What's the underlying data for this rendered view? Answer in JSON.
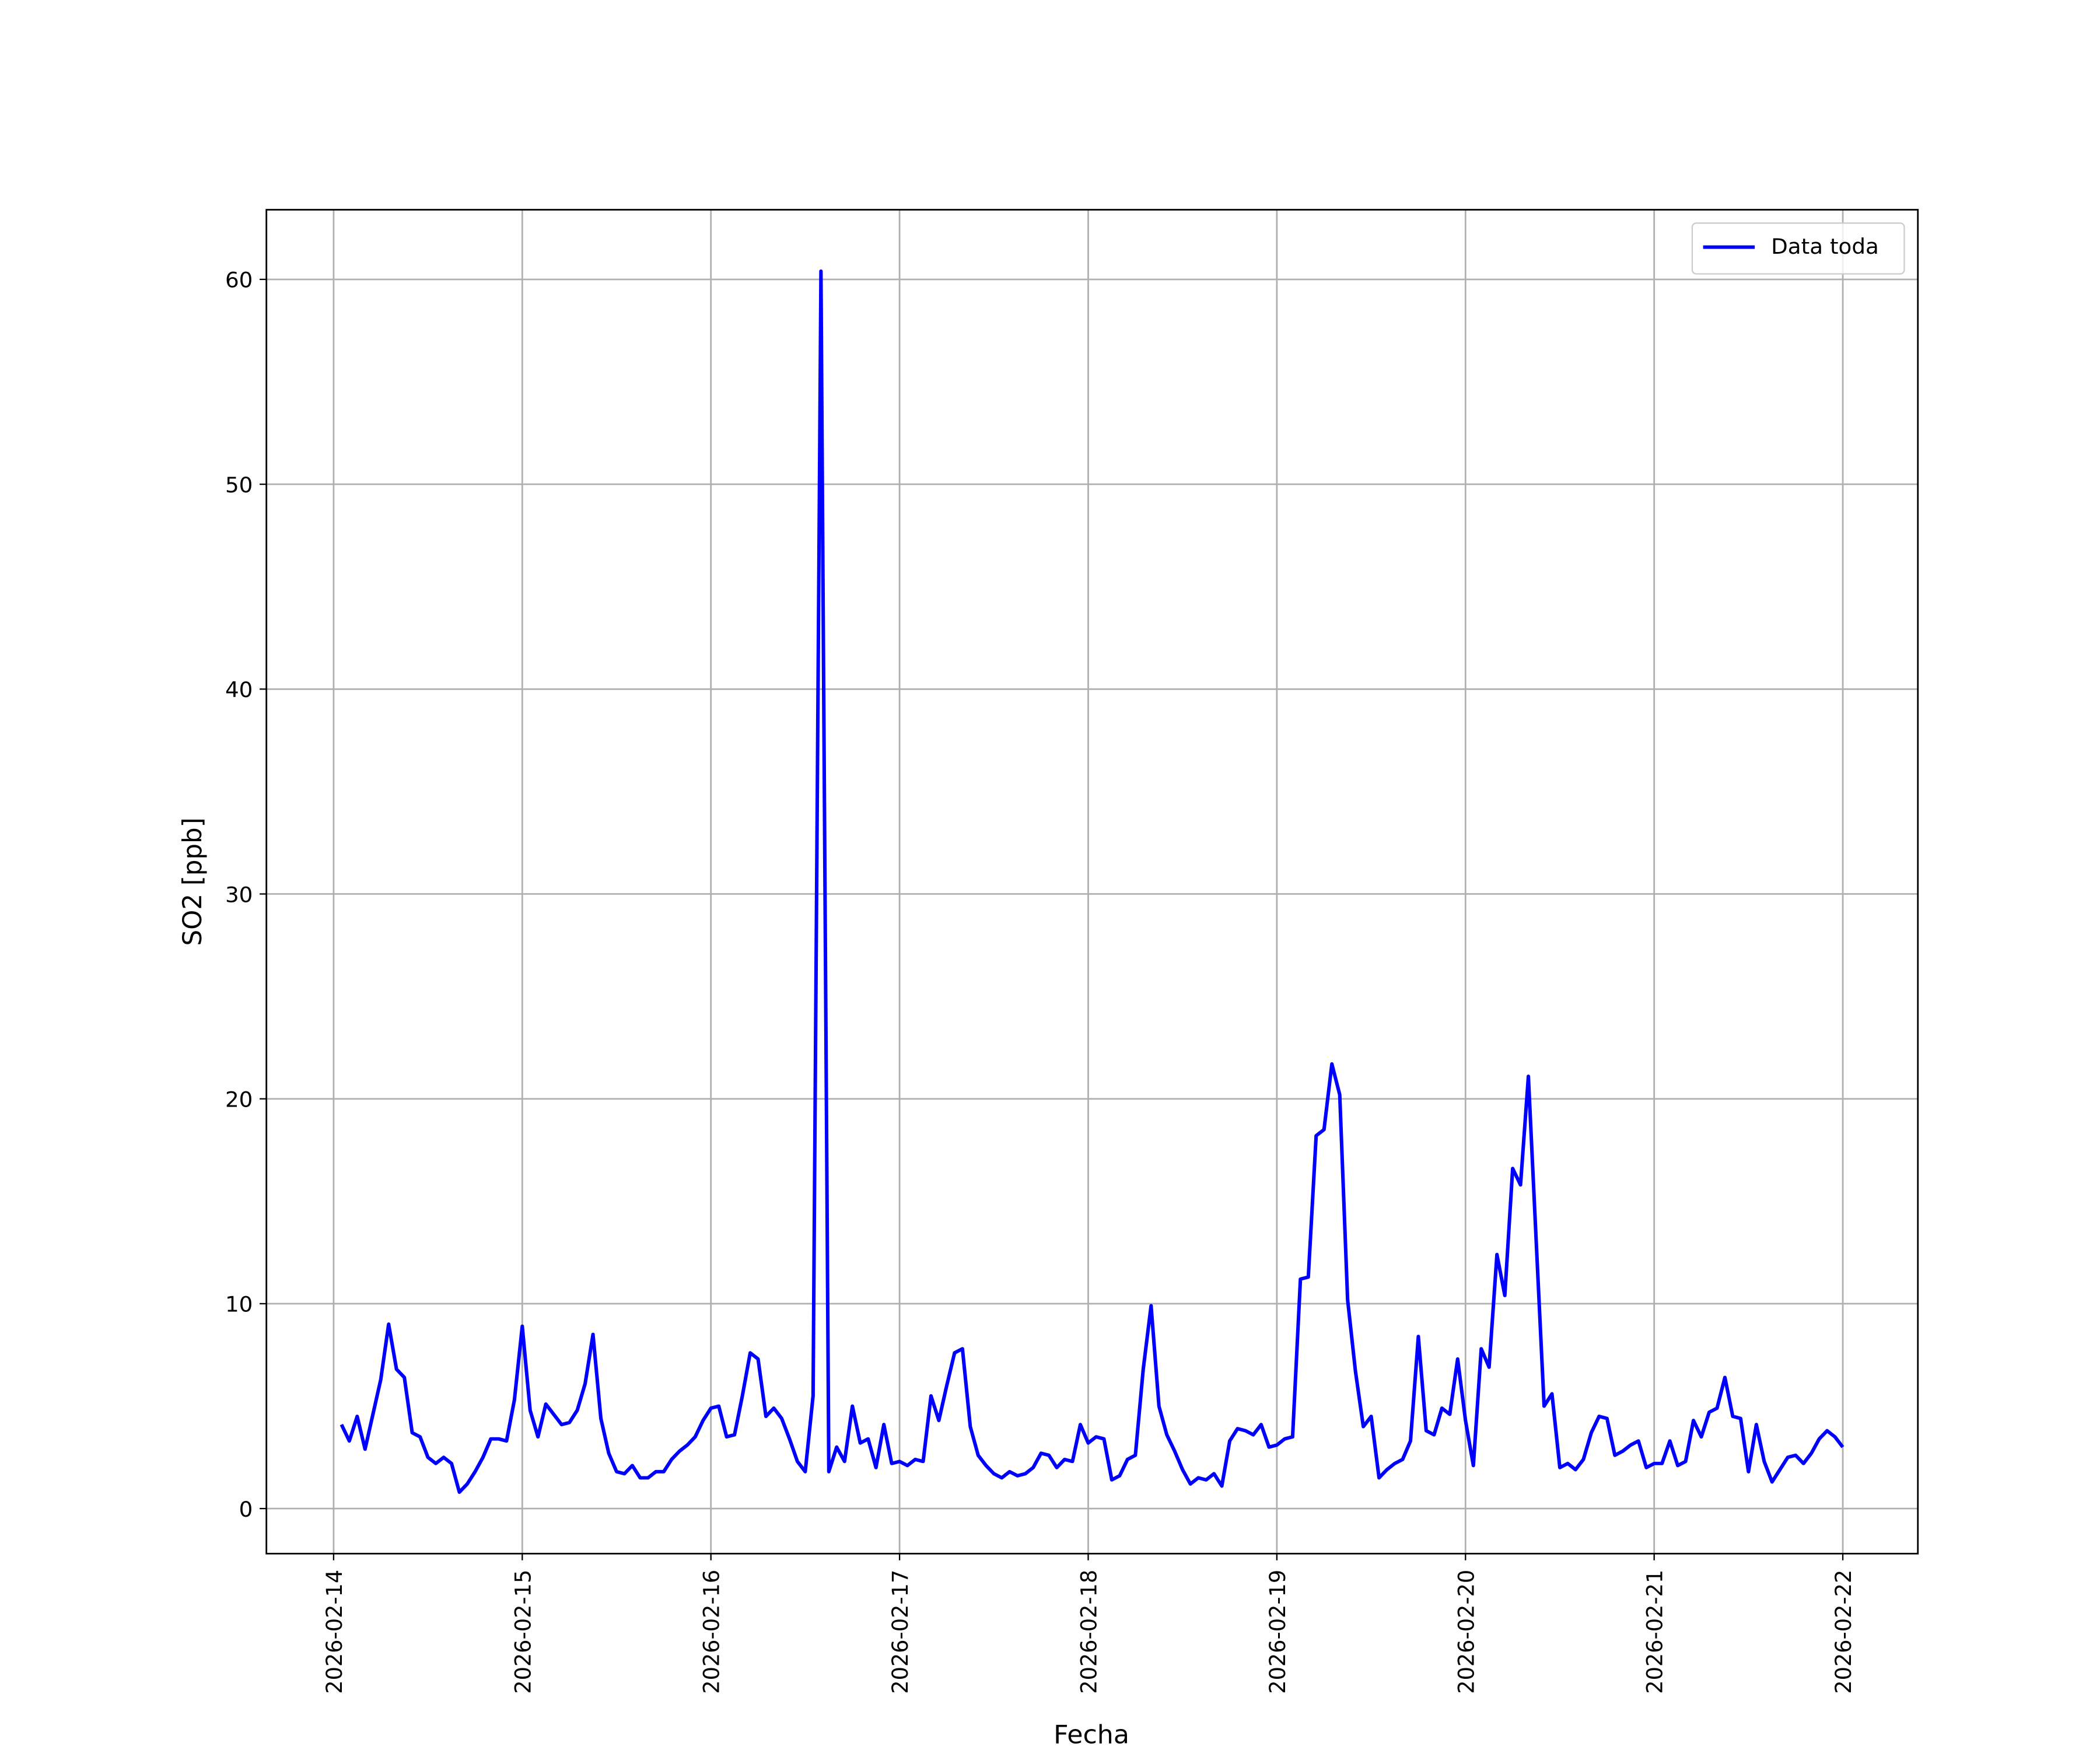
{
  "chart_data": {
    "type": "line",
    "xlabel": "Fecha",
    "ylabel": "SO2 [ppb]",
    "x": [
      "2026-02-14 01:00",
      "2026-02-14 02:00",
      "2026-02-14 03:00",
      "2026-02-14 04:00",
      "2026-02-14 05:00",
      "2026-02-14 06:00",
      "2026-02-14 07:00",
      "2026-02-14 08:00",
      "2026-02-14 09:00",
      "2026-02-14 10:00",
      "2026-02-14 11:00",
      "2026-02-14 12:00",
      "2026-02-14 13:00",
      "2026-02-14 14:00",
      "2026-02-14 15:00",
      "2026-02-14 16:00",
      "2026-02-14 17:00",
      "2026-02-14 18:00",
      "2026-02-14 19:00",
      "2026-02-14 20:00",
      "2026-02-14 21:00",
      "2026-02-14 22:00",
      "2026-02-14 23:00",
      "2026-02-15 00:00",
      "2026-02-15 01:00",
      "2026-02-15 02:00",
      "2026-02-15 03:00",
      "2026-02-15 04:00",
      "2026-02-15 05:00",
      "2026-02-15 06:00",
      "2026-02-15 07:00",
      "2026-02-15 08:00",
      "2026-02-15 09:00",
      "2026-02-15 10:00",
      "2026-02-15 11:00",
      "2026-02-15 12:00",
      "2026-02-15 13:00",
      "2026-02-15 14:00",
      "2026-02-15 15:00",
      "2026-02-15 16:00",
      "2026-02-15 17:00",
      "2026-02-15 18:00",
      "2026-02-15 19:00",
      "2026-02-15 20:00",
      "2026-02-15 21:00",
      "2026-02-15 22:00",
      "2026-02-15 23:00",
      "2026-02-16 00:00",
      "2026-02-16 01:00",
      "2026-02-16 02:00",
      "2026-02-16 03:00",
      "2026-02-16 04:00",
      "2026-02-16 05:00",
      "2026-02-16 06:00",
      "2026-02-16 07:00",
      "2026-02-16 08:00",
      "2026-02-16 09:00",
      "2026-02-16 10:00",
      "2026-02-16 11:00",
      "2026-02-16 12:00",
      "2026-02-16 13:00",
      "2026-02-16 14:00",
      "2026-02-16 15:00",
      "2026-02-16 16:00",
      "2026-02-16 17:00",
      "2026-02-16 18:00",
      "2026-02-16 19:00",
      "2026-02-16 20:00",
      "2026-02-16 21:00",
      "2026-02-16 22:00",
      "2026-02-16 23:00",
      "2026-02-17 00:00",
      "2026-02-17 01:00",
      "2026-02-17 02:00",
      "2026-02-17 03:00",
      "2026-02-17 04:00",
      "2026-02-17 05:00",
      "2026-02-17 06:00",
      "2026-02-17 07:00",
      "2026-02-17 08:00",
      "2026-02-17 09:00",
      "2026-02-17 10:00",
      "2026-02-17 11:00",
      "2026-02-17 12:00",
      "2026-02-17 13:00",
      "2026-02-17 14:00",
      "2026-02-17 15:00",
      "2026-02-17 16:00",
      "2026-02-17 17:00",
      "2026-02-17 18:00",
      "2026-02-17 19:00",
      "2026-02-17 20:00",
      "2026-02-17 21:00",
      "2026-02-17 22:00",
      "2026-02-17 23:00",
      "2026-02-18 00:00",
      "2026-02-18 01:00",
      "2026-02-18 02:00",
      "2026-02-18 03:00",
      "2026-02-18 04:00",
      "2026-02-18 05:00",
      "2026-02-18 06:00",
      "2026-02-18 07:00",
      "2026-02-18 08:00",
      "2026-02-18 09:00",
      "2026-02-18 10:00",
      "2026-02-18 11:00",
      "2026-02-18 12:00",
      "2026-02-18 13:00",
      "2026-02-18 14:00",
      "2026-02-18 15:00",
      "2026-02-18 16:00",
      "2026-02-18 17:00",
      "2026-02-18 18:00",
      "2026-02-18 19:00",
      "2026-02-18 20:00",
      "2026-02-18 21:00",
      "2026-02-18 22:00",
      "2026-02-18 23:00",
      "2026-02-19 00:00",
      "2026-02-19 01:00",
      "2026-02-19 02:00",
      "2026-02-19 03:00",
      "2026-02-19 04:00",
      "2026-02-19 05:00",
      "2026-02-19 06:00",
      "2026-02-19 07:00",
      "2026-02-19 08:00",
      "2026-02-19 09:00",
      "2026-02-19 10:00",
      "2026-02-19 11:00",
      "2026-02-19 12:00",
      "2026-02-19 13:00",
      "2026-02-19 14:00",
      "2026-02-19 15:00",
      "2026-02-19 16:00",
      "2026-02-19 17:00",
      "2026-02-19 18:00",
      "2026-02-19 19:00",
      "2026-02-19 20:00",
      "2026-02-19 21:00",
      "2026-02-19 22:00",
      "2026-02-19 23:00",
      "2026-02-20 00:00",
      "2026-02-20 01:00",
      "2026-02-20 02:00",
      "2026-02-20 03:00",
      "2026-02-20 04:00",
      "2026-02-20 05:00",
      "2026-02-20 06:00",
      "2026-02-20 07:00",
      "2026-02-20 08:00",
      "2026-02-20 09:00",
      "2026-02-20 10:00",
      "2026-02-20 11:00",
      "2026-02-20 12:00",
      "2026-02-20 13:00",
      "2026-02-20 14:00",
      "2026-02-20 15:00",
      "2026-02-20 16:00",
      "2026-02-20 17:00",
      "2026-02-20 18:00",
      "2026-02-20 19:00",
      "2026-02-20 20:00",
      "2026-02-20 21:00",
      "2026-02-20 22:00",
      "2026-02-20 23:00",
      "2026-02-21 00:00",
      "2026-02-21 01:00",
      "2026-02-21 02:00",
      "2026-02-21 03:00",
      "2026-02-21 04:00",
      "2026-02-21 05:00",
      "2026-02-21 06:00",
      "2026-02-21 07:00",
      "2026-02-21 08:00",
      "2026-02-21 09:00",
      "2026-02-21 10:00",
      "2026-02-21 11:00",
      "2026-02-21 12:00",
      "2026-02-21 13:00",
      "2026-02-21 14:00",
      "2026-02-21 15:00",
      "2026-02-21 16:00",
      "2026-02-21 17:00",
      "2026-02-21 18:00",
      "2026-02-21 19:00",
      "2026-02-21 20:00",
      "2026-02-21 21:00",
      "2026-02-21 22:00",
      "2026-02-21 23:00",
      "2026-02-22 00:00"
    ],
    "series": [
      {
        "name": "Data toda",
        "color": "#0000ff",
        "values": [
          4.1,
          3.3,
          4.5,
          2.9,
          4.6,
          6.3,
          9.0,
          6.8,
          6.4,
          3.7,
          3.5,
          2.5,
          2.2,
          2.5,
          2.2,
          0.8,
          1.2,
          1.8,
          2.5,
          3.4,
          3.4,
          3.3,
          5.3,
          8.9,
          4.8,
          3.5,
          5.1,
          4.6,
          4.1,
          4.2,
          4.8,
          6.1,
          8.5,
          4.4,
          2.7,
          1.8,
          1.7,
          2.1,
          1.5,
          1.5,
          1.8,
          1.8,
          2.4,
          2.8,
          3.1,
          3.5,
          4.3,
          4.9,
          5.0,
          3.5,
          3.6,
          5.5,
          7.6,
          7.3,
          4.5,
          4.9,
          4.4,
          3.4,
          2.3,
          1.8,
          5.5,
          60.4,
          1.8,
          3.0,
          2.3,
          5.0,
          3.2,
          3.4,
          2.0,
          4.1,
          2.2,
          2.3,
          2.1,
          2.4,
          2.3,
          5.5,
          4.3,
          6.0,
          7.6,
          7.8,
          4.0,
          2.6,
          2.1,
          1.7,
          1.5,
          1.8,
          1.6,
          1.7,
          2.0,
          2.7,
          2.6,
          2.0,
          2.4,
          2.3,
          4.1,
          3.2,
          3.5,
          3.4,
          1.4,
          1.6,
          2.4,
          2.6,
          6.8,
          9.9,
          5.0,
          3.6,
          2.8,
          1.9,
          1.2,
          1.5,
          1.4,
          1.7,
          1.1,
          3.3,
          3.9,
          3.8,
          3.6,
          4.1,
          3.0,
          3.1,
          3.4,
          3.5,
          11.2,
          11.3,
          18.2,
          18.5,
          21.7,
          20.2,
          10.2,
          6.7,
          4.0,
          4.5,
          1.5,
          1.9,
          2.2,
          2.4,
          3.3,
          8.4,
          3.8,
          3.6,
          4.9,
          4.6,
          7.3,
          4.3,
          2.1,
          7.8,
          6.9,
          12.4,
          10.4,
          16.6,
          15.8,
          21.1,
          13.0,
          5.0,
          5.6,
          2.0,
          2.2,
          1.9,
          2.4,
          3.7,
          4.5,
          4.4,
          2.6,
          2.8,
          3.1,
          3.3,
          2.0,
          2.2,
          2.2,
          3.3,
          2.1,
          2.3,
          4.3,
          3.5,
          4.7,
          4.9,
          6.4,
          4.5,
          4.4,
          1.8,
          4.1,
          2.3,
          1.3,
          1.9,
          2.5,
          2.6,
          2.2,
          2.7,
          3.4,
          3.8,
          3.5,
          3.0
        ]
      }
    ],
    "xlim": [
      "2026-02-13 15:27",
      "2026-02-22 09:33"
    ],
    "xticks": [
      "2026-02-14",
      "2026-02-15",
      "2026-02-16",
      "2026-02-17",
      "2026-02-18",
      "2026-02-19",
      "2026-02-20",
      "2026-02-21",
      "2026-02-22"
    ],
    "ylim": [
      -2.2,
      63.4
    ],
    "yticks": [
      0,
      10,
      20,
      30,
      40,
      50,
      60
    ],
    "grid": true,
    "legend": "upper right"
  }
}
